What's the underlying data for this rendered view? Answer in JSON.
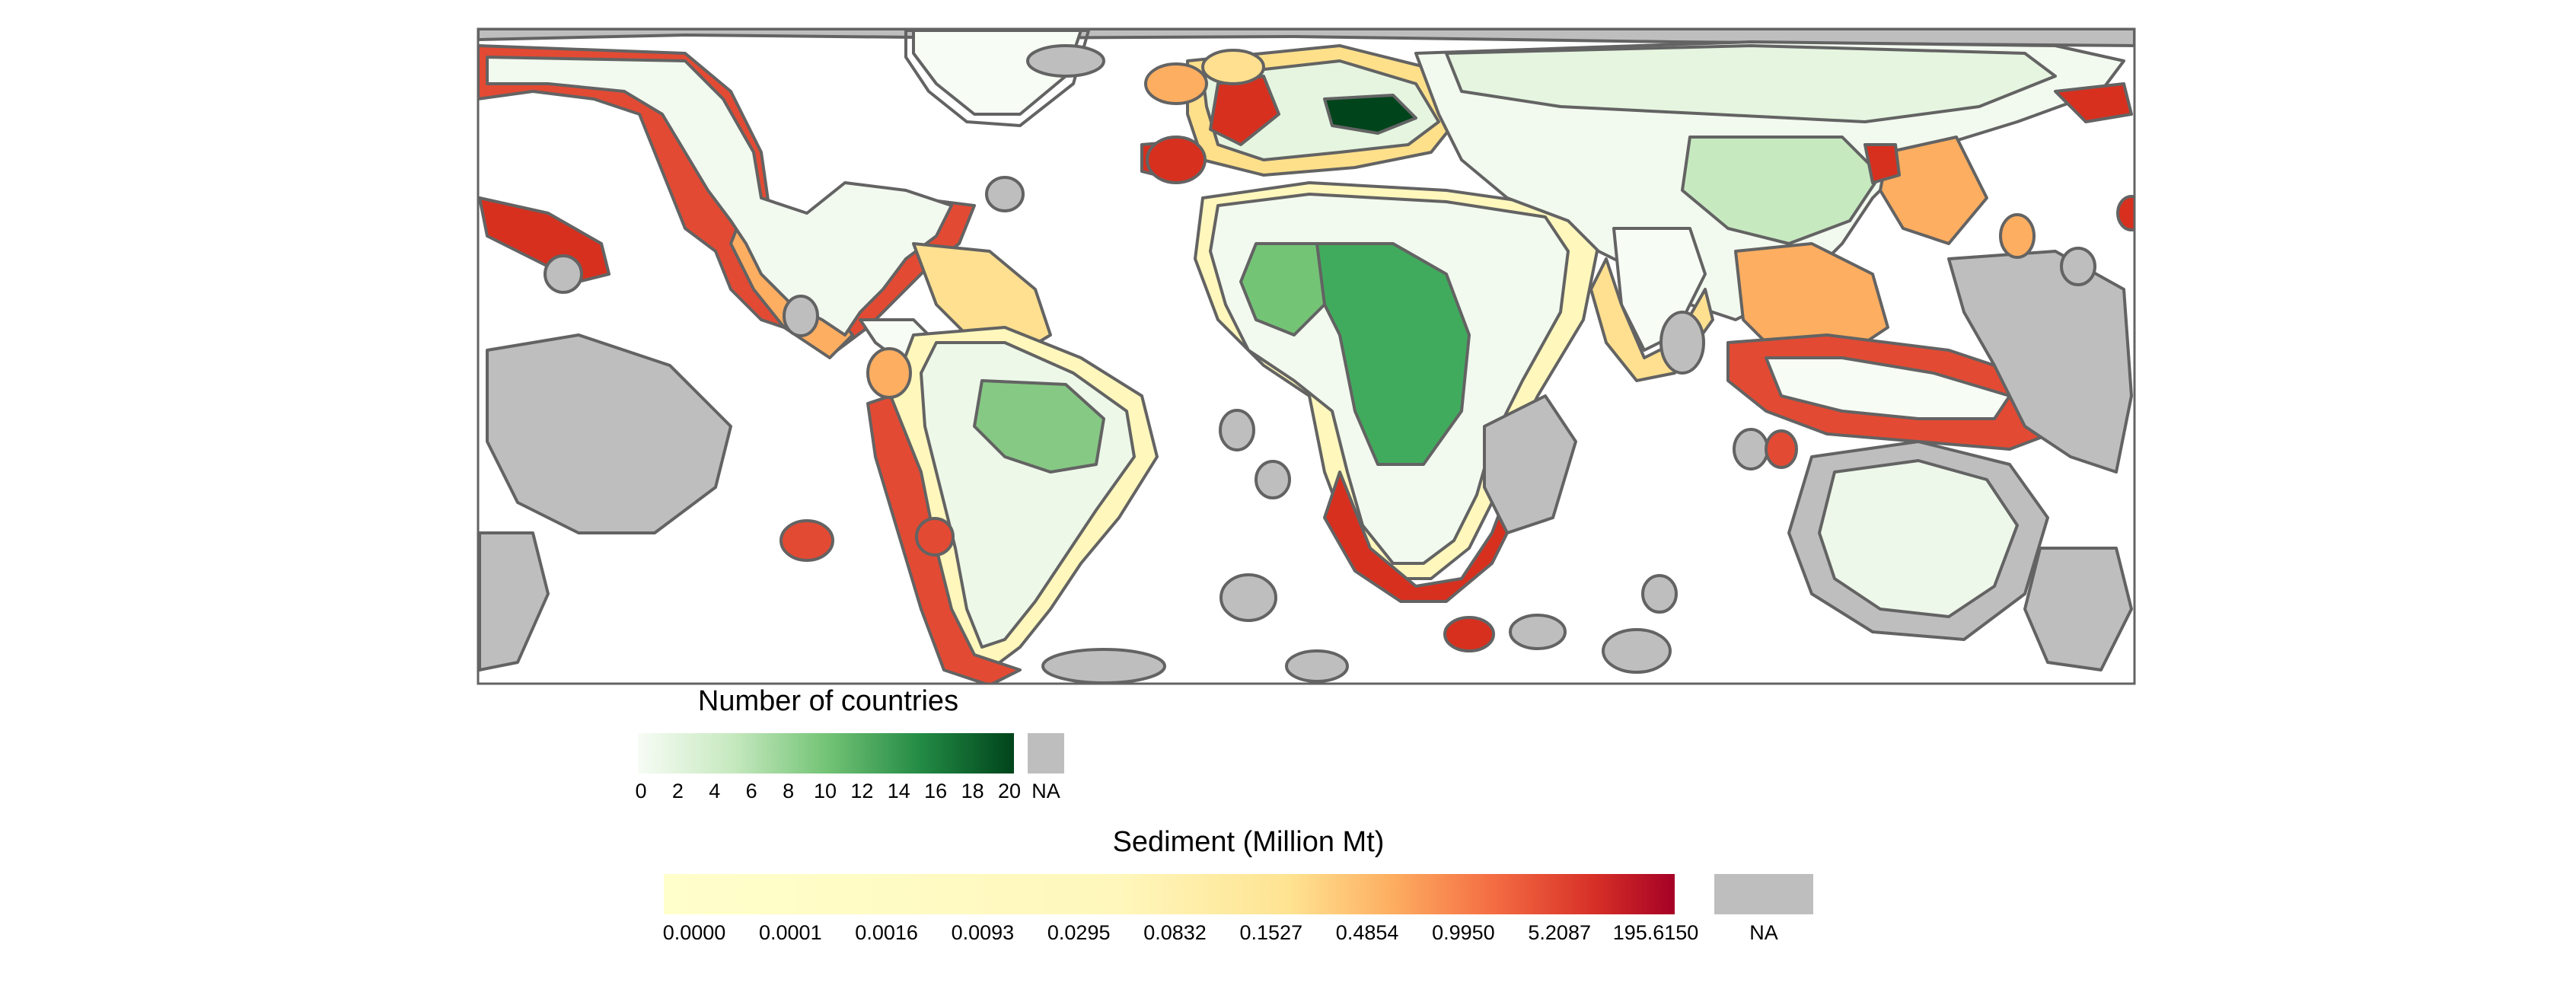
{
  "legend_countries": {
    "title": "Number of countries",
    "ticks": [
      "0",
      "2",
      "4",
      "6",
      "8",
      "10",
      "12",
      "14",
      "16",
      "18",
      "20"
    ],
    "na_label": "NA",
    "colors": [
      "#f7fcf5",
      "#c7e9c0",
      "#74c476",
      "#238b45",
      "#00441b"
    ],
    "na_color": "#bebebe"
  },
  "legend_sediment": {
    "title": "Sediment (Million Mt)",
    "ticks": [
      "0.0000",
      "0.0001",
      "0.0016",
      "0.0093",
      "0.0295",
      "0.0832",
      "0.1527",
      "0.4854",
      "0.9950",
      "5.2087",
      "195.6150"
    ],
    "na_label": "NA",
    "colors": [
      "#ffffcc",
      "#ffeda0",
      "#fed976",
      "#feb24c",
      "#fd8d3c",
      "#fc4e2a",
      "#e31a1c",
      "#bd0026",
      "#a50026"
    ],
    "na_color": "#bebebe"
  },
  "map": {
    "border_color": "#636363",
    "ocean_color": "#ffffff",
    "eez_na_color": "#bebebe"
  }
}
